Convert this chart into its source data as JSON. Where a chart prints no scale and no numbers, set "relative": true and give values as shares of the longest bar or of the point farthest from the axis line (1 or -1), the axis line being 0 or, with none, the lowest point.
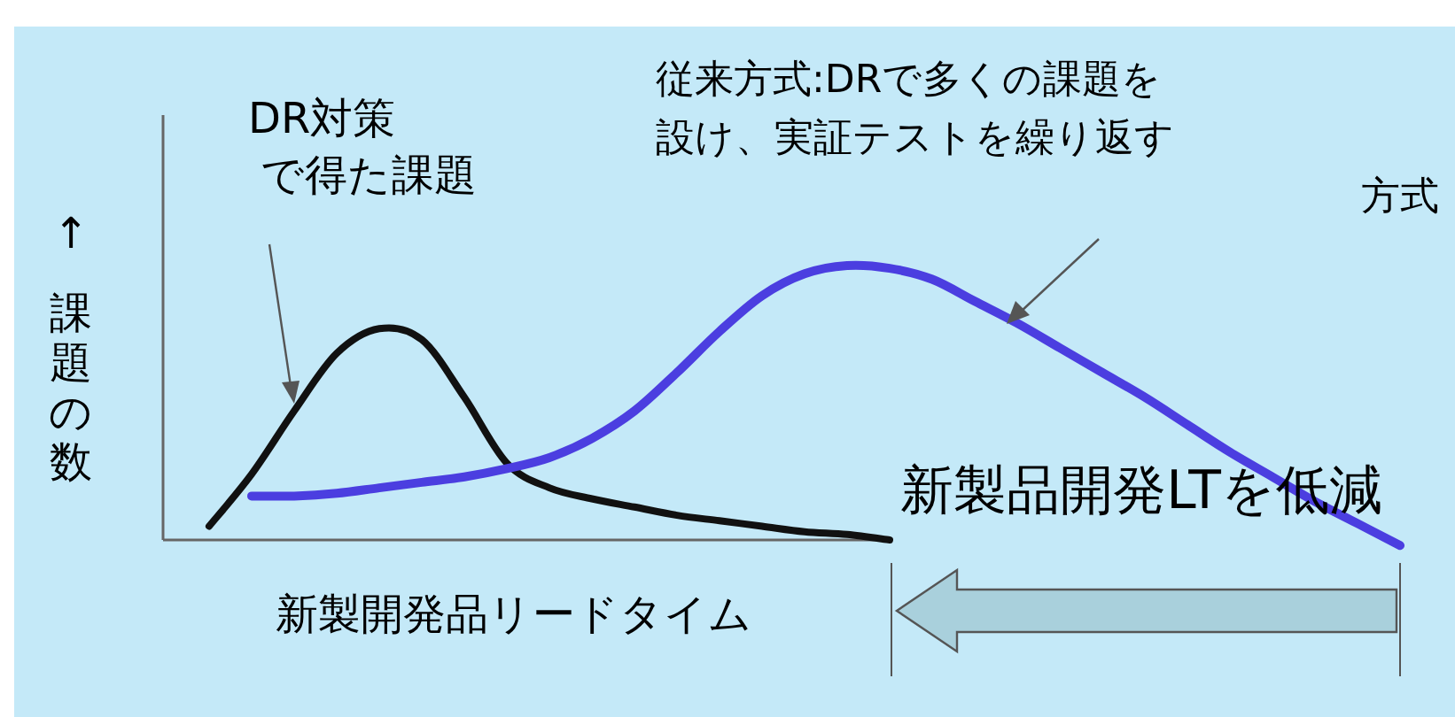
{
  "chart_data": {
    "type": "line",
    "relative": true,
    "ylabel": "↑課題の数",
    "xlabel": "新製開発品リードタイム",
    "categories": [
      null,
      null,
      null,
      null,
      null,
      null,
      null,
      null,
      null,
      null,
      null,
      null,
      null,
      null,
      null,
      null,
      null,
      null,
      null,
      null,
      null,
      null,
      null,
      null,
      null,
      null,
      null,
      null,
      null
    ],
    "series": [
      {
        "color": "#111111",
        "values": [
          0.05,
          0.24,
          0.47,
          0.68,
          0.77,
          0.73,
          0.52,
          0.28,
          0.19,
          0.15,
          0.12,
          0.09,
          0.07,
          0.05,
          0.03,
          0.02,
          0.0,
          null,
          null,
          null,
          null,
          null,
          null,
          null,
          null,
          null,
          null,
          null,
          null
        ]
      },
      {
        "color": "#4b3ee0",
        "values": [
          null,
          0.16,
          0.16,
          0.17,
          0.19,
          0.21,
          0.23,
          0.26,
          0.3,
          0.37,
          0.47,
          0.61,
          0.76,
          0.89,
          0.97,
          1.0,
          0.99,
          0.95,
          0.87,
          0.79,
          0.7,
          0.61,
          0.52,
          0.42,
          0.32,
          0.23,
          0.14,
          0.06,
          -0.02
        ]
      }
    ],
    "annotations": [
      "DR対策",
      "で得た課題",
      "従来方式:DRで多くの課題を",
      "設け、実証テストを繰り返す",
      "方式",
      "新製品開発LTを低減"
    ]
  }
}
